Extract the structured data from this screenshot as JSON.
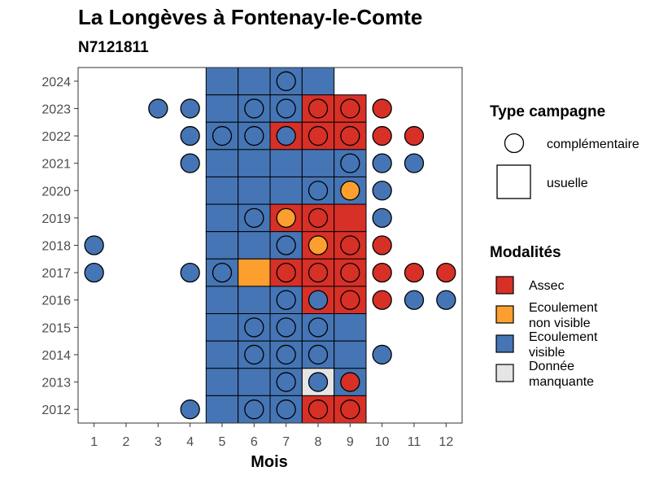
{
  "chart_data": {
    "type": "heatmap",
    "title": "La Longèves à Fontenay-le-Comte",
    "subtitle": "N7121811",
    "xlabel": "Mois",
    "ylabel": "",
    "x_ticks": [
      "1",
      "2",
      "3",
      "4",
      "5",
      "6",
      "7",
      "8",
      "9",
      "10",
      "11",
      "12"
    ],
    "y_ticks": [
      "2012",
      "2013",
      "2014",
      "2015",
      "2016",
      "2017",
      "2018",
      "2019",
      "2020",
      "2021",
      "2022",
      "2023",
      "2024"
    ],
    "xlim": [
      0.5,
      12.5
    ],
    "ylim": [
      2011.5,
      2024.5
    ],
    "grid": false,
    "colors": {
      "assec": "#d73027",
      "ecoulement_non_visible": "#fd9f2e",
      "ecoulement_visible": "#4575b4",
      "donnee_manquante": "#e5e5e5"
    },
    "legend": {
      "placement": "right",
      "type_title": "Type campagne",
      "type_items": [
        {
          "key": "complementaire",
          "label": "complémentaire"
        },
        {
          "key": "usuelle",
          "label": "usuelle"
        }
      ],
      "modalites_title": "Modalités",
      "modalites_items": [
        {
          "key": "assec",
          "lines": [
            "Assec"
          ]
        },
        {
          "key": "ecoulement_non_visible",
          "lines": [
            "Ecoulement",
            "non visible"
          ]
        },
        {
          "key": "ecoulement_visible",
          "lines": [
            "Ecoulement",
            "visible"
          ]
        },
        {
          "key": "donnee_manquante",
          "lines": [
            "Donnée",
            "manquante"
          ]
        }
      ]
    },
    "usuelle": [
      {
        "year": 2024,
        "month": 5,
        "value": "ecoulement_visible"
      },
      {
        "year": 2024,
        "month": 6,
        "value": "ecoulement_visible"
      },
      {
        "year": 2024,
        "month": 7,
        "value": "ecoulement_visible"
      },
      {
        "year": 2024,
        "month": 8,
        "value": "ecoulement_visible"
      },
      {
        "year": 2023,
        "month": 5,
        "value": "ecoulement_visible"
      },
      {
        "year": 2023,
        "month": 6,
        "value": "ecoulement_visible"
      },
      {
        "year": 2023,
        "month": 7,
        "value": "ecoulement_visible"
      },
      {
        "year": 2023,
        "month": 8,
        "value": "assec"
      },
      {
        "year": 2023,
        "month": 9,
        "value": "assec"
      },
      {
        "year": 2022,
        "month": 5,
        "value": "ecoulement_visible"
      },
      {
        "year": 2022,
        "month": 6,
        "value": "ecoulement_visible"
      },
      {
        "year": 2022,
        "month": 7,
        "value": "assec"
      },
      {
        "year": 2022,
        "month": 8,
        "value": "assec"
      },
      {
        "year": 2022,
        "month": 9,
        "value": "assec"
      },
      {
        "year": 2021,
        "month": 5,
        "value": "ecoulement_visible"
      },
      {
        "year": 2021,
        "month": 6,
        "value": "ecoulement_visible"
      },
      {
        "year": 2021,
        "month": 7,
        "value": "ecoulement_visible"
      },
      {
        "year": 2021,
        "month": 8,
        "value": "ecoulement_visible"
      },
      {
        "year": 2021,
        "month": 9,
        "value": "ecoulement_visible"
      },
      {
        "year": 2020,
        "month": 5,
        "value": "ecoulement_visible"
      },
      {
        "year": 2020,
        "month": 6,
        "value": "ecoulement_visible"
      },
      {
        "year": 2020,
        "month": 7,
        "value": "ecoulement_visible"
      },
      {
        "year": 2020,
        "month": 8,
        "value": "ecoulement_visible"
      },
      {
        "year": 2020,
        "month": 9,
        "value": "ecoulement_visible"
      },
      {
        "year": 2019,
        "month": 5,
        "value": "ecoulement_visible"
      },
      {
        "year": 2019,
        "month": 6,
        "value": "ecoulement_visible"
      },
      {
        "year": 2019,
        "month": 7,
        "value": "assec"
      },
      {
        "year": 2019,
        "month": 8,
        "value": "assec"
      },
      {
        "year": 2019,
        "month": 9,
        "value": "assec"
      },
      {
        "year": 2018,
        "month": 5,
        "value": "ecoulement_visible"
      },
      {
        "year": 2018,
        "month": 6,
        "value": "ecoulement_visible"
      },
      {
        "year": 2018,
        "month": 7,
        "value": "ecoulement_visible"
      },
      {
        "year": 2018,
        "month": 8,
        "value": "assec"
      },
      {
        "year": 2018,
        "month": 9,
        "value": "assec"
      },
      {
        "year": 2017,
        "month": 5,
        "value": "ecoulement_visible"
      },
      {
        "year": 2017,
        "month": 6,
        "value": "ecoulement_non_visible"
      },
      {
        "year": 2017,
        "month": 7,
        "value": "assec"
      },
      {
        "year": 2017,
        "month": 8,
        "value": "assec"
      },
      {
        "year": 2017,
        "month": 9,
        "value": "assec"
      },
      {
        "year": 2016,
        "month": 5,
        "value": "ecoulement_visible"
      },
      {
        "year": 2016,
        "month": 6,
        "value": "ecoulement_visible"
      },
      {
        "year": 2016,
        "month": 7,
        "value": "ecoulement_visible"
      },
      {
        "year": 2016,
        "month": 8,
        "value": "assec"
      },
      {
        "year": 2016,
        "month": 9,
        "value": "assec"
      },
      {
        "year": 2015,
        "month": 5,
        "value": "ecoulement_visible"
      },
      {
        "year": 2015,
        "month": 6,
        "value": "ecoulement_visible"
      },
      {
        "year": 2015,
        "month": 7,
        "value": "ecoulement_visible"
      },
      {
        "year": 2015,
        "month": 8,
        "value": "ecoulement_visible"
      },
      {
        "year": 2015,
        "month": 9,
        "value": "ecoulement_visible"
      },
      {
        "year": 2014,
        "month": 5,
        "value": "ecoulement_visible"
      },
      {
        "year": 2014,
        "month": 6,
        "value": "ecoulement_visible"
      },
      {
        "year": 2014,
        "month": 7,
        "value": "ecoulement_visible"
      },
      {
        "year": 2014,
        "month": 8,
        "value": "ecoulement_visible"
      },
      {
        "year": 2014,
        "month": 9,
        "value": "ecoulement_visible"
      },
      {
        "year": 2013,
        "month": 5,
        "value": "ecoulement_visible"
      },
      {
        "year": 2013,
        "month": 6,
        "value": "ecoulement_visible"
      },
      {
        "year": 2013,
        "month": 7,
        "value": "ecoulement_visible"
      },
      {
        "year": 2013,
        "month": 8,
        "value": "donnee_manquante"
      },
      {
        "year": 2013,
        "month": 9,
        "value": "ecoulement_visible"
      },
      {
        "year": 2012,
        "month": 5,
        "value": "ecoulement_visible"
      },
      {
        "year": 2012,
        "month": 6,
        "value": "ecoulement_visible"
      },
      {
        "year": 2012,
        "month": 7,
        "value": "ecoulement_visible"
      },
      {
        "year": 2012,
        "month": 8,
        "value": "assec"
      },
      {
        "year": 2012,
        "month": 9,
        "value": "assec"
      }
    ],
    "complementaire": [
      {
        "year": 2024,
        "month": 7,
        "value": "ecoulement_visible"
      },
      {
        "year": 2023,
        "month": 3,
        "value": "ecoulement_visible"
      },
      {
        "year": 2023,
        "month": 4,
        "value": "ecoulement_visible"
      },
      {
        "year": 2023,
        "month": 6,
        "value": "ecoulement_visible"
      },
      {
        "year": 2023,
        "month": 7,
        "value": "ecoulement_visible"
      },
      {
        "year": 2023,
        "month": 8,
        "value": "assec"
      },
      {
        "year": 2023,
        "month": 9,
        "value": "assec"
      },
      {
        "year": 2023,
        "month": 10,
        "value": "assec"
      },
      {
        "year": 2022,
        "month": 4,
        "value": "ecoulement_visible"
      },
      {
        "year": 2022,
        "month": 5,
        "value": "ecoulement_visible"
      },
      {
        "year": 2022,
        "month": 6,
        "value": "ecoulement_visible"
      },
      {
        "year": 2022,
        "month": 7,
        "value": "ecoulement_visible"
      },
      {
        "year": 2022,
        "month": 8,
        "value": "assec"
      },
      {
        "year": 2022,
        "month": 9,
        "value": "assec"
      },
      {
        "year": 2022,
        "month": 10,
        "value": "assec"
      },
      {
        "year": 2022,
        "month": 11,
        "value": "assec"
      },
      {
        "year": 2021,
        "month": 4,
        "value": "ecoulement_visible"
      },
      {
        "year": 2021,
        "month": 9,
        "value": "ecoulement_visible"
      },
      {
        "year": 2021,
        "month": 10,
        "value": "ecoulement_visible"
      },
      {
        "year": 2021,
        "month": 11,
        "value": "ecoulement_visible"
      },
      {
        "year": 2020,
        "month": 8,
        "value": "ecoulement_visible"
      },
      {
        "year": 2020,
        "month": 9,
        "value": "ecoulement_non_visible"
      },
      {
        "year": 2020,
        "month": 10,
        "value": "ecoulement_visible"
      },
      {
        "year": 2019,
        "month": 6,
        "value": "ecoulement_visible"
      },
      {
        "year": 2019,
        "month": 7,
        "value": "ecoulement_non_visible"
      },
      {
        "year": 2019,
        "month": 8,
        "value": "assec"
      },
      {
        "year": 2019,
        "month": 10,
        "value": "ecoulement_visible"
      },
      {
        "year": 2018,
        "month": 1,
        "value": "ecoulement_visible"
      },
      {
        "year": 2018,
        "month": 7,
        "value": "ecoulement_visible"
      },
      {
        "year": 2018,
        "month": 8,
        "value": "ecoulement_non_visible"
      },
      {
        "year": 2018,
        "month": 9,
        "value": "assec"
      },
      {
        "year": 2018,
        "month": 10,
        "value": "assec"
      },
      {
        "year": 2017,
        "month": 1,
        "value": "ecoulement_visible"
      },
      {
        "year": 2017,
        "month": 4,
        "value": "ecoulement_visible"
      },
      {
        "year": 2017,
        "month": 5,
        "value": "ecoulement_visible"
      },
      {
        "year": 2017,
        "month": 7,
        "value": "assec"
      },
      {
        "year": 2017,
        "month": 8,
        "value": "assec"
      },
      {
        "year": 2017,
        "month": 9,
        "value": "assec"
      },
      {
        "year": 2017,
        "month": 10,
        "value": "assec"
      },
      {
        "year": 2017,
        "month": 11,
        "value": "assec"
      },
      {
        "year": 2017,
        "month": 12,
        "value": "assec"
      },
      {
        "year": 2016,
        "month": 7,
        "value": "ecoulement_visible"
      },
      {
        "year": 2016,
        "month": 8,
        "value": "ecoulement_visible"
      },
      {
        "year": 2016,
        "month": 9,
        "value": "assec"
      },
      {
        "year": 2016,
        "month": 10,
        "value": "assec"
      },
      {
        "year": 2016,
        "month": 11,
        "value": "ecoulement_visible"
      },
      {
        "year": 2016,
        "month": 12,
        "value": "ecoulement_visible"
      },
      {
        "year": 2015,
        "month": 6,
        "value": "ecoulement_visible"
      },
      {
        "year": 2015,
        "month": 7,
        "value": "ecoulement_visible"
      },
      {
        "year": 2015,
        "month": 8,
        "value": "ecoulement_visible"
      },
      {
        "year": 2014,
        "month": 6,
        "value": "ecoulement_visible"
      },
      {
        "year": 2014,
        "month": 7,
        "value": "ecoulement_visible"
      },
      {
        "year": 2014,
        "month": 8,
        "value": "ecoulement_visible"
      },
      {
        "year": 2014,
        "month": 10,
        "value": "ecoulement_visible"
      },
      {
        "year": 2013,
        "month": 7,
        "value": "ecoulement_visible"
      },
      {
        "year": 2013,
        "month": 8,
        "value": "ecoulement_visible"
      },
      {
        "year": 2013,
        "month": 9,
        "value": "assec"
      },
      {
        "year": 2012,
        "month": 4,
        "value": "ecoulement_visible"
      },
      {
        "year": 2012,
        "month": 6,
        "value": "ecoulement_visible"
      },
      {
        "year": 2012,
        "month": 7,
        "value": "ecoulement_visible"
      },
      {
        "year": 2012,
        "month": 8,
        "value": "assec"
      },
      {
        "year": 2012,
        "month": 9,
        "value": "assec"
      }
    ]
  }
}
